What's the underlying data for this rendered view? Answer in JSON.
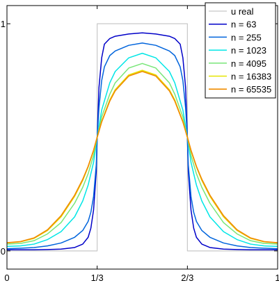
{
  "chart_data": {
    "type": "line",
    "xlim": [
      0,
      1
    ],
    "ylim": [
      -0.08,
      1.08
    ],
    "x_ticks": [
      {
        "value": 0,
        "label": "0"
      },
      {
        "value": 0.3333,
        "label": "1/3"
      },
      {
        "value": 0.6667,
        "label": "2/3"
      },
      {
        "value": 1,
        "label": "1"
      }
    ],
    "y_ticks": [
      {
        "value": 0,
        "label": "0"
      },
      {
        "value": 1,
        "label": "1"
      }
    ],
    "grid": false,
    "legend_position": "top-right",
    "series": [
      {
        "name": "u real",
        "color": "#c8c8c8",
        "width": 1.2,
        "x": [
          0,
          0.3333,
          0.3333,
          0.6667,
          0.6667,
          1
        ],
        "y": [
          0,
          0,
          1,
          1,
          0,
          0
        ]
      },
      {
        "name": "n = 63",
        "color": "#0000c8",
        "width": 1.5,
        "x": [
          0,
          0.05,
          0.1,
          0.15,
          0.2,
          0.25,
          0.28,
          0.3,
          0.31,
          0.32,
          0.33,
          0.3333,
          0.34,
          0.35,
          0.36,
          0.38,
          0.4,
          0.45,
          0.5,
          0.55,
          0.6,
          0.62,
          0.64,
          0.65,
          0.66,
          0.6667,
          0.67,
          0.68,
          0.69,
          0.7,
          0.72,
          0.75,
          0.8,
          0.85,
          0.9,
          0.95,
          1
        ],
        "y": [
          0.005,
          0.005,
          0.005,
          0.006,
          0.008,
          0.015,
          0.03,
          0.06,
          0.1,
          0.18,
          0.35,
          0.5,
          0.72,
          0.85,
          0.91,
          0.935,
          0.945,
          0.955,
          0.96,
          0.955,
          0.945,
          0.935,
          0.91,
          0.85,
          0.72,
          0.5,
          0.35,
          0.18,
          0.1,
          0.06,
          0.03,
          0.015,
          0.008,
          0.006,
          0.005,
          0.005,
          0.005
        ]
      },
      {
        "name": "n = 255",
        "color": "#0064dc",
        "width": 1.5,
        "x": [
          0,
          0.05,
          0.1,
          0.15,
          0.2,
          0.25,
          0.28,
          0.3,
          0.31,
          0.32,
          0.33,
          0.3333,
          0.34,
          0.35,
          0.36,
          0.38,
          0.4,
          0.45,
          0.5,
          0.55,
          0.6,
          0.62,
          0.64,
          0.65,
          0.66,
          0.6667,
          0.67,
          0.68,
          0.69,
          0.7,
          0.72,
          0.75,
          0.8,
          0.85,
          0.9,
          0.95,
          1
        ],
        "y": [
          0.01,
          0.012,
          0.015,
          0.022,
          0.035,
          0.06,
          0.09,
          0.13,
          0.17,
          0.24,
          0.38,
          0.5,
          0.63,
          0.75,
          0.81,
          0.86,
          0.88,
          0.905,
          0.915,
          0.905,
          0.88,
          0.86,
          0.81,
          0.75,
          0.63,
          0.5,
          0.38,
          0.24,
          0.17,
          0.13,
          0.09,
          0.06,
          0.035,
          0.022,
          0.015,
          0.012,
          0.01
        ]
      },
      {
        "name": "n = 1023",
        "color": "#00e6e6",
        "width": 1.5,
        "x": [
          0,
          0.05,
          0.1,
          0.15,
          0.2,
          0.25,
          0.28,
          0.3,
          0.32,
          0.3333,
          0.35,
          0.38,
          0.4,
          0.45,
          0.5,
          0.55,
          0.6,
          0.62,
          0.65,
          0.6667,
          0.68,
          0.7,
          0.72,
          0.75,
          0.8,
          0.85,
          0.9,
          0.95,
          1
        ],
        "y": [
          0.02,
          0.022,
          0.03,
          0.05,
          0.085,
          0.15,
          0.22,
          0.29,
          0.39,
          0.5,
          0.62,
          0.74,
          0.79,
          0.85,
          0.87,
          0.85,
          0.79,
          0.74,
          0.62,
          0.5,
          0.39,
          0.29,
          0.22,
          0.15,
          0.085,
          0.05,
          0.03,
          0.022,
          0.02
        ]
      },
      {
        "name": "n = 4095",
        "color": "#78e678",
        "width": 1.5,
        "x": [
          0,
          0.05,
          0.1,
          0.15,
          0.2,
          0.25,
          0.28,
          0.3,
          0.32,
          0.3333,
          0.35,
          0.38,
          0.4,
          0.45,
          0.5,
          0.55,
          0.6,
          0.62,
          0.65,
          0.6667,
          0.68,
          0.7,
          0.72,
          0.75,
          0.8,
          0.85,
          0.9,
          0.95,
          1
        ],
        "y": [
          0.03,
          0.033,
          0.045,
          0.075,
          0.125,
          0.21,
          0.28,
          0.34,
          0.42,
          0.5,
          0.59,
          0.69,
          0.74,
          0.805,
          0.825,
          0.805,
          0.74,
          0.69,
          0.59,
          0.5,
          0.42,
          0.34,
          0.28,
          0.21,
          0.125,
          0.075,
          0.045,
          0.033,
          0.03
        ]
      },
      {
        "name": "n = 16383",
        "color": "#e6e600",
        "width": 1.5,
        "x": [
          0,
          0.05,
          0.1,
          0.15,
          0.2,
          0.25,
          0.28,
          0.3,
          0.32,
          0.3333,
          0.35,
          0.38,
          0.4,
          0.45,
          0.5,
          0.55,
          0.6,
          0.62,
          0.65,
          0.6667,
          0.68,
          0.7,
          0.72,
          0.75,
          0.8,
          0.85,
          0.9,
          0.95,
          1
        ],
        "y": [
          0.035,
          0.04,
          0.055,
          0.09,
          0.15,
          0.24,
          0.31,
          0.37,
          0.44,
          0.5,
          0.57,
          0.665,
          0.71,
          0.775,
          0.795,
          0.775,
          0.71,
          0.665,
          0.57,
          0.5,
          0.44,
          0.37,
          0.31,
          0.24,
          0.15,
          0.09,
          0.055,
          0.04,
          0.035
        ]
      },
      {
        "name": "n = 65535",
        "color": "#f08c00",
        "width": 1.7,
        "x": [
          0,
          0.05,
          0.1,
          0.15,
          0.2,
          0.25,
          0.28,
          0.3,
          0.32,
          0.3333,
          0.35,
          0.38,
          0.4,
          0.45,
          0.5,
          0.55,
          0.6,
          0.62,
          0.65,
          0.6667,
          0.68,
          0.7,
          0.72,
          0.75,
          0.8,
          0.85,
          0.9,
          0.95,
          1
        ],
        "y": [
          0.036,
          0.041,
          0.057,
          0.093,
          0.155,
          0.245,
          0.315,
          0.372,
          0.443,
          0.5,
          0.568,
          0.66,
          0.705,
          0.77,
          0.79,
          0.77,
          0.705,
          0.66,
          0.568,
          0.5,
          0.443,
          0.372,
          0.315,
          0.245,
          0.155,
          0.093,
          0.057,
          0.041,
          0.036
        ]
      }
    ]
  }
}
